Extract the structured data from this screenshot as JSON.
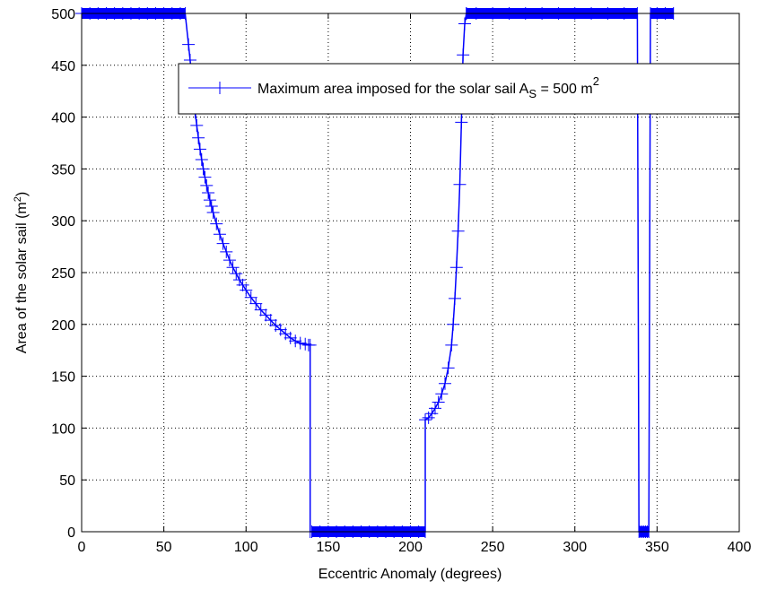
{
  "chart_data": {
    "type": "line",
    "title": "",
    "xlabel": "Eccentric Anomaly (degrees)",
    "ylabel_main": "Area of the solar sail (m",
    "ylabel_sup": "2",
    "ylabel_end": ")",
    "xlim": [
      0,
      400
    ],
    "ylim": [
      0,
      500
    ],
    "xticks": [
      0,
      50,
      100,
      150,
      200,
      250,
      300,
      350,
      400
    ],
    "yticks": [
      0,
      50,
      100,
      150,
      200,
      250,
      300,
      350,
      400,
      450,
      500
    ],
    "xtick_labels": [
      "0",
      "50",
      "100",
      "150",
      "200",
      "250",
      "300",
      "350",
      "400"
    ],
    "ytick_labels": [
      "0",
      "50",
      "100",
      "150",
      "200",
      "250",
      "300",
      "350",
      "400",
      "450",
      "500"
    ],
    "grid": true,
    "legend_position": "top-right",
    "colors": {
      "series": "#0000ff",
      "axes": "#000000",
      "grid": "#000000",
      "background": "#ffffff"
    },
    "legend": {
      "text_main": "Maximum area imposed for the solar sail A",
      "text_sub": "S",
      "text_mid": " = 500 m",
      "text_sup": "2"
    },
    "series": [
      {
        "marker": "+",
        "x": [
          0,
          5,
          10,
          15,
          20,
          25,
          30,
          35,
          40,
          45,
          50,
          55,
          60,
          63,
          65,
          66,
          67,
          68,
          69,
          70,
          71,
          72,
          73,
          74,
          75,
          76,
          77,
          78,
          79,
          80,
          82,
          84,
          86,
          88,
          90,
          92,
          94,
          96,
          98,
          100,
          103,
          106,
          109,
          112,
          115,
          118,
          121,
          124,
          127,
          130,
          133,
          136,
          138,
          139,
          139,
          140,
          145,
          150,
          155,
          160,
          165,
          170,
          175,
          180,
          185,
          190,
          195,
          200,
          205,
          209,
          209,
          211,
          213,
          215,
          217,
          219,
          221,
          223,
          225,
          226,
          227,
          228,
          229,
          230,
          231,
          232,
          233,
          234,
          234,
          240,
          250,
          260,
          270,
          280,
          290,
          300,
          310,
          320,
          330,
          338,
          339,
          340,
          341,
          342,
          343,
          344,
          345,
          346,
          350,
          355,
          360
        ],
        "y": [
          500,
          500,
          500,
          500,
          500,
          500,
          500,
          500,
          500,
          500,
          500,
          500,
          500,
          500,
          470,
          455,
          440,
          420,
          405,
          392,
          380,
          369,
          359,
          350,
          342,
          334,
          327,
          320,
          314,
          308,
          297,
          287,
          278,
          270,
          262,
          255,
          249,
          243,
          238,
          233,
          226,
          220,
          214,
          209,
          204,
          199,
          195,
          191,
          187,
          184,
          182,
          181,
          180,
          180,
          0,
          0,
          0,
          0,
          0,
          0,
          0,
          0,
          0,
          0,
          0,
          0,
          0,
          0,
          0,
          0,
          108,
          110,
          114,
          119,
          125,
          133,
          143,
          158,
          180,
          200,
          225,
          255,
          290,
          335,
          395,
          460,
          490,
          500,
          500,
          500,
          500,
          500,
          500,
          500,
          500,
          500,
          500,
          500,
          500,
          500,
          0,
          0,
          0,
          0,
          0,
          0,
          0,
          500,
          500,
          500,
          500
        ]
      }
    ]
  }
}
